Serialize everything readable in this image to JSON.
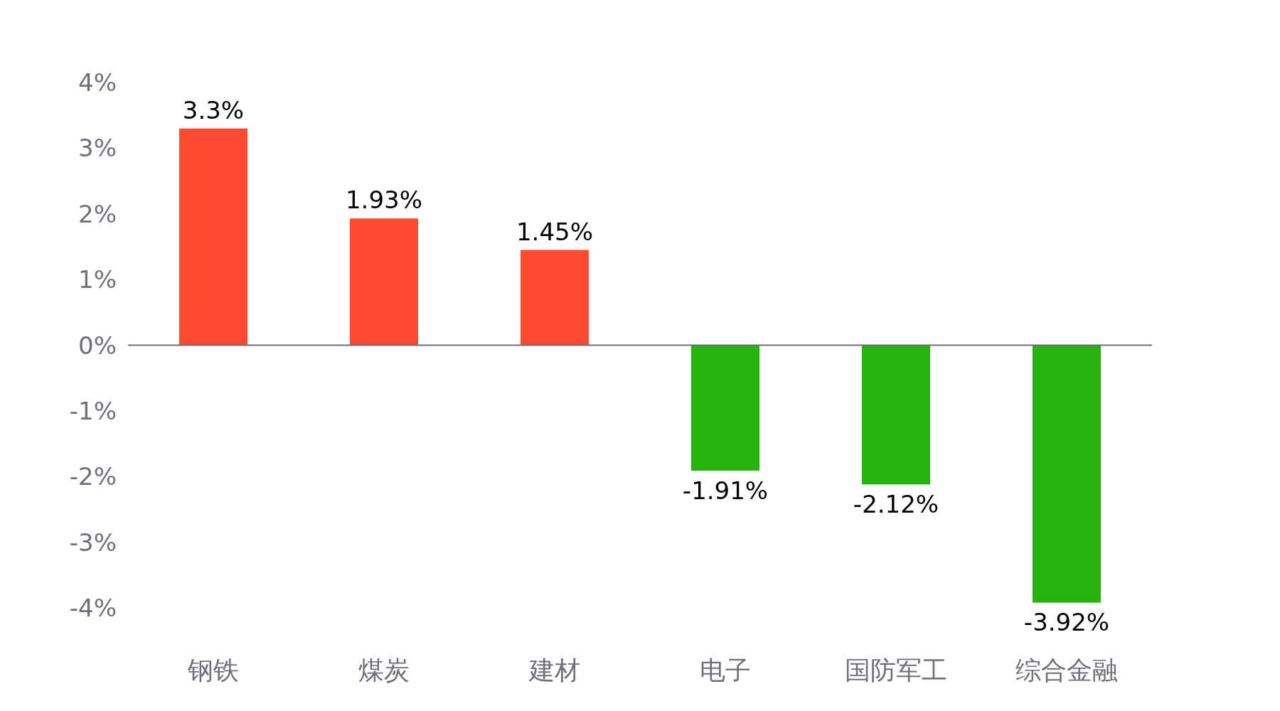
{
  "chart_data": {
    "type": "bar",
    "categories": [
      "钢铁",
      "煤炭",
      "建材",
      "电子",
      "国防军工",
      "综合金融"
    ],
    "values": [
      3.3,
      1.93,
      1.45,
      -1.91,
      -2.12,
      -3.92
    ],
    "colors": [
      "#ff4b33",
      "#ff4b33",
      "#ff4b33",
      "#28b20e",
      "#28b20e",
      "#28b20e"
    ],
    "value_labels": [
      "3.3%",
      "1.93%",
      "1.45%",
      "-1.91%",
      "-2.12%",
      "-3.92%"
    ],
    "ylim": [
      -4,
      4
    ],
    "yticks": [
      {
        "value": -4,
        "label": "-4%"
      },
      {
        "value": -3,
        "label": "-3%"
      },
      {
        "value": -2,
        "label": "-2%"
      },
      {
        "value": -1,
        "label": "-1%"
      },
      {
        "value": 0,
        "label": "0%"
      },
      {
        "value": 1,
        "label": "1%"
      },
      {
        "value": 2,
        "label": "2%"
      },
      {
        "value": 3,
        "label": "3%"
      },
      {
        "value": 4,
        "label": "4%"
      }
    ]
  }
}
